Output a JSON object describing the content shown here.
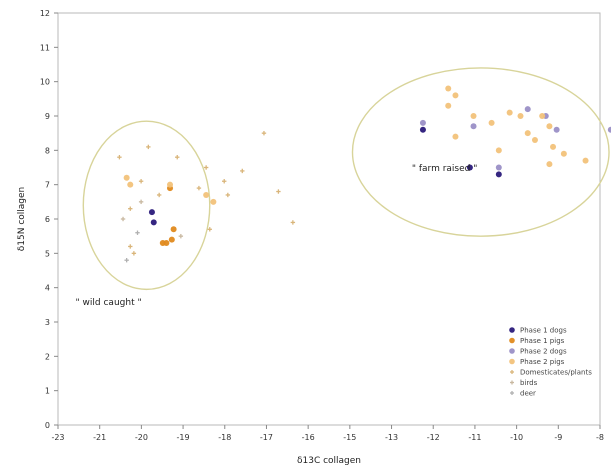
{
  "chart_data": {
    "type": "scatter",
    "title": "",
    "xlabel": "δ13C collagen",
    "ylabel": "δ15N collagen",
    "xlim": [
      -23,
      -8
    ],
    "ylim": [
      0,
      12
    ],
    "xticks": [
      "-23",
      "-21",
      "-20",
      "-19",
      "-18",
      "-17",
      "-16",
      "-15",
      "-13",
      "-12",
      "-11",
      "-10",
      "-9",
      "-8"
    ],
    "yticks": [
      "0",
      "1",
      "2",
      "3",
      "4",
      "5",
      "6",
      "7",
      "8",
      "9",
      "10",
      "11",
      "12"
    ],
    "grid": false,
    "legend_position": "bottom-right",
    "annotations": [
      {
        "text": "\" wild caught \"",
        "x": -21.6,
        "y": 3.5
      },
      {
        "text": "\" farm raised \"",
        "x": -12.3,
        "y": 7.4
      }
    ],
    "series": [
      {
        "name": "Phase 1 dogs",
        "color": "#2a1a7a",
        "marker": "circle",
        "points": [
          [
            -20.4,
            6.2
          ],
          [
            -20.35,
            5.9
          ],
          [
            -12.9,
            8.6
          ],
          [
            -11.6,
            7.5
          ],
          [
            -10.8,
            7.3
          ]
        ]
      },
      {
        "name": "Phase 1 pigs",
        "color": "#e08a1e",
        "marker": "circle",
        "points": [
          [
            -19.9,
            6.9
          ],
          [
            -19.8,
            5.7
          ],
          [
            -20.1,
            5.3
          ],
          [
            -20.0,
            5.3
          ],
          [
            -19.85,
            5.4
          ]
        ]
      },
      {
        "name": "Phase 2 dogs",
        "color": "#9a8fc6",
        "marker": "circle",
        "points": [
          [
            -12.9,
            8.8
          ],
          [
            -11.5,
            8.7
          ],
          [
            -10.8,
            7.5
          ],
          [
            -10.0,
            9.2
          ],
          [
            -9.5,
            9.0
          ],
          [
            -9.2,
            8.6
          ],
          [
            -7.7,
            8.6
          ]
        ]
      },
      {
        "name": "Phase 2 pigs",
        "color": "#f2c27a",
        "marker": "circle",
        "points": [
          [
            -21.1,
            7.2
          ],
          [
            -21.0,
            7.0
          ],
          [
            -19.9,
            7.0
          ],
          [
            -18.9,
            6.7
          ],
          [
            -18.7,
            6.5
          ],
          [
            -12.2,
            9.8
          ],
          [
            -12.0,
            9.6
          ],
          [
            -12.2,
            9.3
          ],
          [
            -11.5,
            9.0
          ],
          [
            -11.0,
            8.8
          ],
          [
            -10.5,
            9.1
          ],
          [
            -10.2,
            9.0
          ],
          [
            -10.0,
            8.5
          ],
          [
            -9.8,
            8.3
          ],
          [
            -9.4,
            8.7
          ],
          [
            -9.3,
            8.1
          ],
          [
            -9.0,
            7.9
          ],
          [
            -8.4,
            7.7
          ],
          [
            -7.6,
            8.1
          ],
          [
            -12.0,
            8.4
          ],
          [
            -10.8,
            8.0
          ],
          [
            -9.6,
            9.0
          ],
          [
            -9.4,
            7.6
          ]
        ]
      },
      {
        "name": "Domesticates/plants",
        "color": "#d9b57a",
        "marker": "cross",
        "points": [
          [
            -21.3,
            7.8
          ],
          [
            -21.0,
            6.3
          ],
          [
            -20.7,
            7.1
          ],
          [
            -20.5,
            8.1
          ],
          [
            -20.2,
            6.7
          ],
          [
            -19.7,
            7.8
          ],
          [
            -19.1,
            6.9
          ],
          [
            -18.9,
            7.5
          ],
          [
            -18.4,
            7.1
          ],
          [
            -18.3,
            6.7
          ],
          [
            -17.9,
            7.4
          ],
          [
            -17.3,
            8.5
          ],
          [
            -16.9,
            6.8
          ],
          [
            -16.5,
            5.9
          ],
          [
            -18.8,
            5.7
          ],
          [
            -21.0,
            5.2
          ],
          [
            -20.9,
            5.0
          ]
        ]
      },
      {
        "name": "birds",
        "color": "#c8b8a0",
        "marker": "cross",
        "points": [
          [
            -20.7,
            6.5
          ],
          [
            -21.2,
            6.0
          ],
          [
            -19.6,
            5.5
          ]
        ]
      },
      {
        "name": "deer",
        "color": "#b0b0b0",
        "marker": "cross",
        "points": [
          [
            -20.8,
            5.6
          ],
          [
            -21.1,
            4.8
          ]
        ]
      }
    ]
  }
}
